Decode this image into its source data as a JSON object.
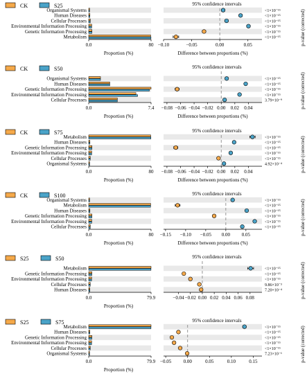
{
  "style": {
    "ck_color": "#F5A94A",
    "s_color": "#4AA3C8",
    "band_color": "#E9E9E9",
    "dash_color": "#8A8A8A"
  },
  "chart_data": [
    {
      "type": "bar",
      "legend": [
        "CK",
        "S25"
      ],
      "categories": [
        "Organismal Systems",
        "Human Diseases",
        "Cellular Processes",
        "Environmental Information Processing",
        "Genetic Information Processing",
        "Metabolism"
      ],
      "series": [
        {
          "name": "CK",
          "values": [
            1.2,
            1.6,
            2.1,
            3.9,
            4.2,
            79.5
          ]
        },
        {
          "name": "S25",
          "values": [
            1.1,
            1.5,
            2.0,
            3.8,
            4.1,
            79.9
          ]
        }
      ],
      "xlabel": "Proportion (%)",
      "xlim": [
        0,
        80
      ],
      "xticks": [
        "0.0",
        "80"
      ],
      "ci_title": "95% confidence intervals",
      "ci_xlabel": "Difference between proportions (%)",
      "ci_xlim": [
        -0.1,
        0.075
      ],
      "ci_xticks": [
        -0.1,
        -0.05,
        0.0,
        0.05
      ],
      "ci_xtick_labels": [
        "−0.10",
        "−0.05",
        "0.00",
        "0.05"
      ],
      "differences": [
        0.006,
        0.037,
        0.012,
        0.051,
        -0.028,
        -0.078
      ],
      "ci_errors": [
        0.003,
        0.003,
        0.003,
        0.003,
        0.003,
        0.005
      ],
      "point_colors": [
        "s",
        "s",
        "s",
        "s",
        "ck",
        "ck"
      ],
      "pvalues": [
        "<1×10⁻¹⁵",
        "<1×10⁻¹⁵",
        "<1×10⁻¹⁵",
        "<1×10⁻¹⁵",
        "<1×10⁻¹⁵",
        "<1×10⁻¹⁵"
      ],
      "pvalue_label": "p-value (corrected)"
    },
    {
      "type": "bar",
      "legend": [
        "CK",
        "S50"
      ],
      "categories": [
        "Organismal Systems",
        "Human Diseases",
        "Genetic Information Processing",
        "Environmental Information Processing",
        "Cellular Processes"
      ],
      "series": [
        {
          "name": "CK",
          "values": [
            1.4,
            2.5,
            7.4,
            5.6,
            3.4
          ]
        },
        {
          "name": "S50",
          "values": [
            1.4,
            2.5,
            7.2,
            5.8,
            3.4
          ]
        }
      ],
      "xlabel": "Proportion (%)",
      "xlim": [
        0,
        7.4
      ],
      "xticks": [
        "0.0",
        "7.4"
      ],
      "ci_title": "95% confidence intervals",
      "ci_xlabel": "Difference between proportions (%)",
      "ci_xlim": [
        -0.085,
        0.06
      ],
      "ci_xticks": [
        -0.08,
        -0.06,
        -0.04,
        -0.02,
        0.0,
        0.02,
        0.04
      ],
      "ci_xtick_labels": [
        "−0.08",
        "−0.06",
        "−0.04",
        "−0.02",
        "0.00",
        "0.02",
        "0.04"
      ],
      "differences": [
        0.008,
        0.036,
        -0.065,
        0.027,
        0.005
      ],
      "ci_errors": [
        0.002,
        0.002,
        0.003,
        0.002,
        0.002
      ],
      "point_colors": [
        "s",
        "s",
        "ck",
        "s",
        "s"
      ],
      "pvalues": [
        "<1×10⁻¹⁵",
        "<1×10⁻¹⁵",
        "<1×10⁻¹⁵",
        "<1×10⁻¹⁵",
        "3.79×10⁻⁹"
      ],
      "pvalue_label": "p-value (corrected)"
    },
    {
      "type": "bar",
      "legend": [
        "CK",
        "S75"
      ],
      "categories": [
        "Metabolism",
        "Human Diseases",
        "Genetic Information Processing",
        "Environmental Information Processing",
        "Cellular Processes",
        "Organismal Systems"
      ],
      "series": [
        {
          "name": "CK",
          "values": [
            79.5,
            1.6,
            4.2,
            3.9,
            2.1,
            1.2
          ]
        },
        {
          "name": "S75",
          "values": [
            79.8,
            1.6,
            4.1,
            3.8,
            2.0,
            1.2
          ]
        }
      ],
      "xlabel": "Proportion (%)",
      "xlim": [
        0,
        80
      ],
      "xticks": [
        "0.0",
        "80"
      ],
      "ci_title": "95% confidence intervals",
      "ci_xlabel": "Difference between proportions (%)",
      "ci_xlim": [
        -0.085,
        0.06
      ],
      "ci_xticks": [
        -0.08,
        -0.06,
        -0.04,
        -0.02,
        0.0,
        0.02,
        0.04
      ],
      "ci_xtick_labels": [
        "−0.08",
        "−0.06",
        "−0.04",
        "−0.02",
        "0.00",
        "0.02",
        "0.04"
      ],
      "differences": [
        0.046,
        0.019,
        -0.067,
        0.014,
        -0.004,
        0.004
      ],
      "ci_errors": [
        0.004,
        0.002,
        0.003,
        0.002,
        0.002,
        0.002
      ],
      "point_colors": [
        "s",
        "s",
        "ck",
        "s",
        "ck",
        "s"
      ],
      "pvalues": [
        "<1×10⁻¹⁵",
        "<1×10⁻¹⁵",
        "<1×10⁻¹⁵",
        "<1×10⁻¹⁵",
        "<1×10⁻¹⁵",
        "4.92×10⁻⁴"
      ],
      "pvalue_label": "p-value (corrected)"
    },
    {
      "type": "bar",
      "legend": [
        "CK",
        "S100"
      ],
      "categories": [
        "Organismal Systems",
        "Metabolism",
        "Human Diseases",
        "Genetic Information Processing",
        "Environmental Information Processing",
        "Cellular Processes"
      ],
      "series": [
        {
          "name": "CK",
          "values": [
            1.2,
            79.5,
            1.6,
            4.2,
            3.9,
            2.1
          ]
        },
        {
          "name": "S100",
          "values": [
            1.2,
            79.4,
            1.6,
            4.1,
            3.9,
            2.0
          ]
        }
      ],
      "xlabel": "Proportion (%)",
      "xlim": [
        0,
        80
      ],
      "xticks": [
        "0.0",
        "80"
      ],
      "ci_title": "95% confidence intervals",
      "ci_xlabel": "Difference between proportions (%)",
      "ci_xlim": [
        -0.155,
        0.09
      ],
      "ci_xticks": [
        -0.15,
        -0.1,
        -0.05,
        0.0,
        0.05
      ],
      "ci_xtick_labels": [
        "−0.15",
        "−0.10",
        "−0.05",
        "0.00",
        "0.05"
      ],
      "differences": [
        0.017,
        -0.12,
        0.052,
        -0.029,
        0.072,
        0.041
      ],
      "ci_errors": [
        0.003,
        0.006,
        0.003,
        0.003,
        0.003,
        0.003
      ],
      "point_colors": [
        "s",
        "ck",
        "s",
        "ck",
        "s",
        "s"
      ],
      "pvalues": [
        "<1×10⁻¹⁵",
        "<1×10⁻¹⁵",
        "<1×10⁻¹⁵",
        "<1×10⁻¹⁵",
        "<1×10⁻¹⁵",
        "<1×10⁻¹⁵"
      ],
      "pvalue_label": "p-value (corrected)"
    },
    {
      "type": "bar",
      "legend": [
        "S25",
        "S50"
      ],
      "categories": [
        "Metabolism",
        "Genetic Information Processing",
        "Environmental Information Processing",
        "Cellular Processes",
        "Human Diseases"
      ],
      "series": [
        {
          "name": "S25",
          "values": [
            79.9,
            4.1,
            3.8,
            2.0,
            1.5
          ]
        },
        {
          "name": "S50",
          "values": [
            79.8,
            4.0,
            3.7,
            2.0,
            1.5
          ]
        }
      ],
      "xlabel": "Proportion (%)",
      "xlim": [
        0,
        79.9
      ],
      "xticks": [
        "0.0",
        "79.9"
      ],
      "ci_title": "95% confidence intervals",
      "ci_xlabel": "",
      "ci_xlim": [
        -0.065,
        0.1
      ],
      "ci_xticks": [
        -0.04,
        -0.02,
        0.0,
        0.02,
        0.04,
        0.06,
        0.08
      ],
      "ci_xtick_labels": [
        "−0.04",
        "−0.02",
        "0.00",
        "0.02",
        "0.04",
        "0.06",
        "0.08"
      ],
      "differences": [
        0.081,
        -0.031,
        -0.02,
        -0.005,
        -0.002
      ],
      "ci_errors": [
        0.005,
        0.002,
        0.002,
        0.002,
        0.002
      ],
      "point_colors": [
        "s",
        "ck",
        "ck",
        "ck",
        "ck"
      ],
      "pvalues": [
        "<1×10⁻¹⁵",
        "<1×10⁻¹⁵",
        "<1×10⁻¹⁵",
        "9.86×10⁻³",
        "7.20×10⁻⁴"
      ],
      "pvalue_label": "p-value (corrected)"
    },
    {
      "type": "bar",
      "legend": [
        "S25",
        "S75"
      ],
      "categories": [
        "Metabolism",
        "Human Diseases",
        "Genetic Information Processing",
        "Environmental Information Processing",
        "Cellular Processes",
        "Organismal Systems"
      ],
      "series": [
        {
          "name": "S25",
          "values": [
            79.9,
            1.5,
            4.1,
            3.8,
            2.0,
            1.1
          ]
        },
        {
          "name": "S75",
          "values": [
            79.8,
            1.5,
            4.0,
            3.7,
            2.0,
            1.1
          ]
        }
      ],
      "xlabel": "Proportion (%)",
      "xlim": [
        0,
        79.9
      ],
      "xticks": [
        "0.0",
        "79.9"
      ],
      "ci_title": "95% confidence intervals",
      "ci_xlabel": "",
      "ci_xlim": [
        -0.055,
        0.17
      ],
      "ci_xticks": [
        -0.05,
        0.0,
        0.05,
        0.1,
        0.15
      ],
      "ci_xtick_labels": [
        "−0.05",
        "0.00",
        "0.05",
        "0.10",
        "0.15"
      ],
      "differences": [
        0.13,
        -0.021,
        -0.036,
        -0.031,
        -0.017,
        -0.001
      ],
      "ci_errors": [
        0.004,
        0.002,
        0.002,
        0.002,
        0.002,
        0.002
      ],
      "point_colors": [
        "s",
        "ck",
        "ck",
        "ck",
        "ck",
        "ck"
      ],
      "pvalues": [
        "<1×10⁻¹⁵",
        "<1×10⁻¹⁵",
        "<1×10⁻¹⁵",
        "<1×10⁻¹⁵",
        "<1×10⁻¹⁵",
        "7.23×10⁻⁶"
      ],
      "pvalue_label": "p-value (corrected)"
    }
  ]
}
